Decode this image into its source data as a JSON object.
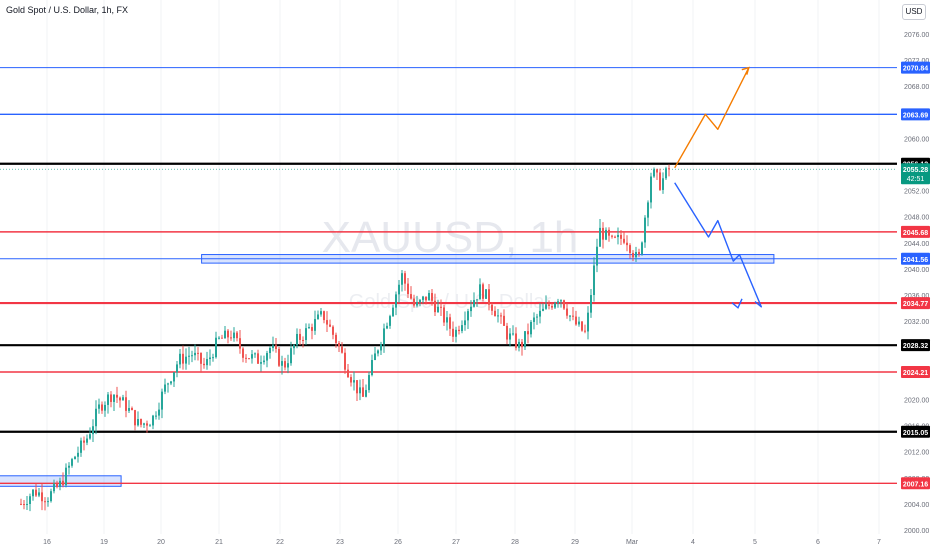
{
  "header": {
    "title": "Gold Spot / U.S. Dollar, 1h, FX",
    "currency_button": "USD"
  },
  "watermark": {
    "symbol": "XAUUSD, 1h",
    "name": "Gold Spot / U.S. Dollar"
  },
  "colors": {
    "up_candle": "#26a69a",
    "down_candle": "#ef5350",
    "resistance_blue": "#2962ff",
    "level_red": "#f23645",
    "level_black": "#000000",
    "forecast_orange": "#f57c00",
    "forecast_blue": "#2962ff",
    "current_price_badge": "#089981"
  },
  "chart_data": {
    "type": "candlestick",
    "title": "Gold Spot / U.S. Dollar, 1h, FX",
    "ylim": [
      2000,
      2076
    ],
    "y_ticks": [
      2000,
      2004,
      2008,
      2012,
      2016,
      2020,
      2024,
      2028,
      2032,
      2036,
      2040,
      2044,
      2048,
      2052,
      2056,
      2060,
      2064,
      2068,
      2072,
      2076
    ],
    "y_tick_labels": [
      "2000.00",
      "2004.00",
      "2008.00",
      "2012.00",
      "2016.00",
      "2020.00",
      "2024.00",
      "2028.00",
      "2032.00",
      "2036.00",
      "2040.00",
      "2044.00",
      "2048.00",
      "2052.00",
      "2056.00",
      "2060.00",
      "2064.00",
      "2068.00",
      "2072.00",
      "2076.00"
    ],
    "x_tick_labels": [
      "16",
      "19",
      "20",
      "21",
      "22",
      "23",
      "26",
      "27",
      "28",
      "29",
      "Mar",
      "4",
      "5",
      "6",
      "7"
    ],
    "horizontal_levels": [
      {
        "price": 2070.84,
        "label": "2070.84",
        "color": "#2962ff",
        "weight": "thin"
      },
      {
        "price": 2063.69,
        "label": "2063.69",
        "color": "#2962ff",
        "weight": "medium"
      },
      {
        "price": 2056.12,
        "label": "2056.12",
        "color": "#000000",
        "weight": "thick"
      },
      {
        "price": 2045.68,
        "label": "2045.68",
        "color": "#f23645",
        "weight": "medium"
      },
      {
        "price": 2041.56,
        "label": "2041.56",
        "color": "#2962ff",
        "weight": "thin"
      },
      {
        "price": 2034.77,
        "label": "2034.77",
        "color": "#f23645",
        "weight": "thick"
      },
      {
        "price": 2028.32,
        "label": "2028.32",
        "color": "#000000",
        "weight": "thick"
      },
      {
        "price": 2024.21,
        "label": "2024.21",
        "color": "#f23645",
        "weight": "medium"
      },
      {
        "price": 2015.05,
        "label": "2015.05",
        "color": "#000000",
        "weight": "thick"
      },
      {
        "price": 2007.16,
        "label": "2007.16",
        "color": "#f23645",
        "weight": "medium"
      }
    ],
    "current_price": {
      "price": 2055.28,
      "label": "2055.28",
      "countdown": "42:51"
    },
    "zones": [
      {
        "from_price": 2041.2,
        "to_price": 2041.9,
        "start_day": 2.7,
        "end_day": 12.3
      },
      {
        "from_price": 2007.0,
        "to_price": 2008.0,
        "start_day": -0.9,
        "end_day": 1.3
      }
    ],
    "forecasts": [
      {
        "color": "#f57c00",
        "points": [
          [
            10.7,
            2055.5
          ],
          [
            11.2,
            2063.7
          ],
          [
            11.4,
            2061.4
          ],
          [
            11.9,
            2070.84
          ]
        ]
      },
      {
        "color": "#2962ff",
        "points": [
          [
            10.7,
            2053.2
          ],
          [
            11.25,
            2044.9
          ],
          [
            11.4,
            2047.4
          ],
          [
            11.65,
            2041.2
          ],
          [
            11.75,
            2042.2
          ],
          [
            12.1,
            2034.2
          ],
          [
            12.0,
            2035.0
          ]
        ]
      }
    ],
    "trend_series": [
      [
        0,
        2004.0
      ],
      [
        0.3,
        2006.0
      ],
      [
        0.6,
        2005.0
      ],
      [
        0.9,
        2007.0
      ],
      [
        1.2,
        2011.0
      ],
      [
        1.5,
        2014.0
      ],
      [
        1.8,
        2019.0
      ],
      [
        2.1,
        2021.0
      ],
      [
        2.4,
        2019.0
      ],
      [
        2.7,
        2016.0
      ],
      [
        3.0,
        2017.0
      ],
      [
        3.3,
        2022.0
      ],
      [
        3.6,
        2026.0
      ],
      [
        3.9,
        2027.0
      ],
      [
        4.2,
        2025.0
      ],
      [
        4.5,
        2029.0
      ],
      [
        4.8,
        2030.0
      ],
      [
        5.1,
        2027.0
      ],
      [
        5.4,
        2026.0
      ],
      [
        5.7,
        2028.0
      ],
      [
        6.0,
        2025.0
      ],
      [
        6.3,
        2029.0
      ],
      [
        6.6,
        2031.0
      ],
      [
        6.9,
        2033.0
      ],
      [
        7.2,
        2029.0
      ],
      [
        7.5,
        2024.0
      ],
      [
        7.8,
        2020.0
      ],
      [
        8.1,
        2027.0
      ],
      [
        8.4,
        2033.0
      ],
      [
        8.7,
        2039.0
      ],
      [
        9.0,
        2034.0
      ],
      [
        9.3,
        2036.0
      ],
      [
        9.6,
        2033.0
      ],
      [
        9.9,
        2030.0
      ],
      [
        10.2,
        2034.0
      ],
      [
        10.5,
        2037.0
      ],
      [
        10.8,
        2034.0
      ],
      [
        11.1,
        2030.0
      ],
      [
        11.4,
        2028.0
      ],
      [
        11.7,
        2032.0
      ],
      [
        12.0,
        2034.0
      ],
      [
        12.3,
        2036.0
      ],
      [
        12.6,
        2032.0
      ],
      [
        12.9,
        2030.0
      ],
      [
        13.2,
        2046.0
      ],
      [
        13.5,
        2044.0
      ],
      [
        13.8,
        2045.0
      ],
      [
        14.1,
        2041.0
      ],
      [
        14.4,
        2055.0
      ],
      [
        14.6,
        2053.0
      ],
      [
        14.8,
        2055.28
      ]
    ]
  }
}
